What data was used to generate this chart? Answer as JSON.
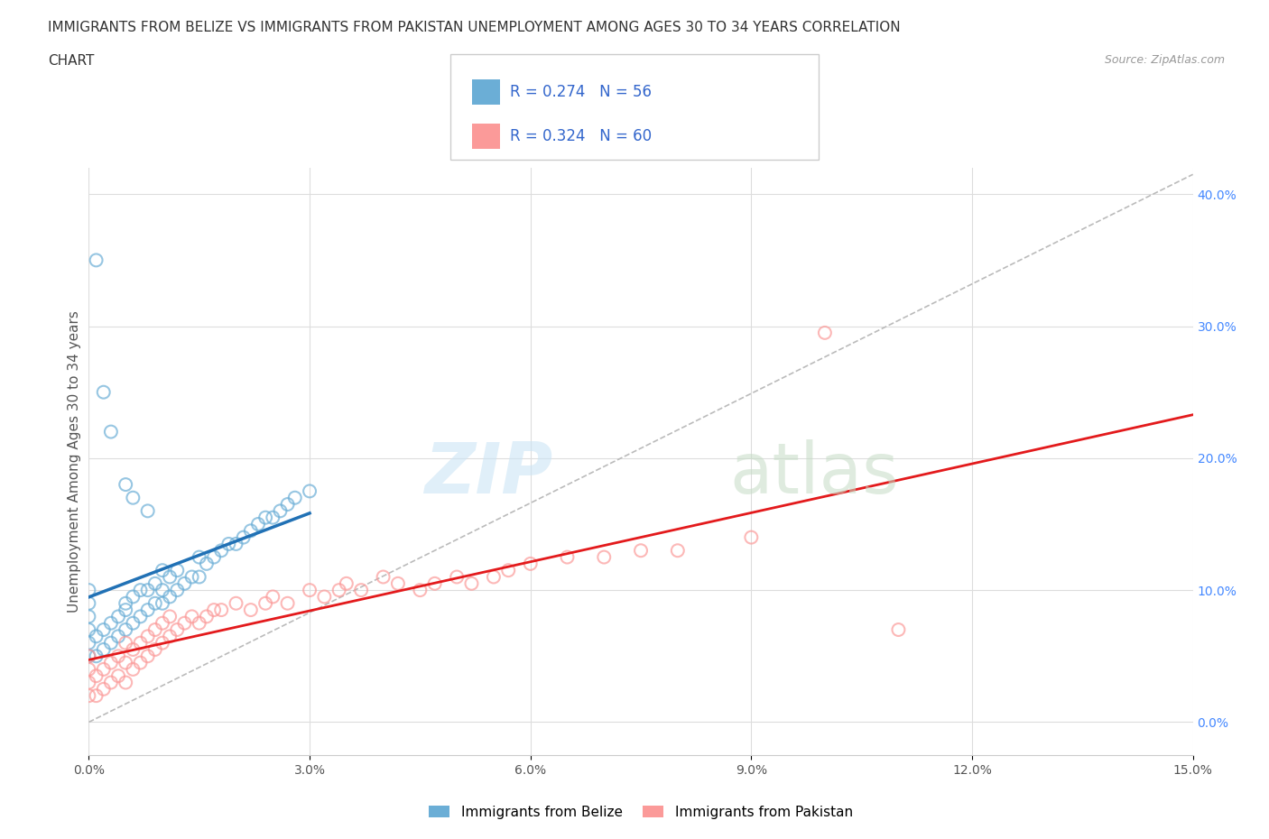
{
  "title_line1": "IMMIGRANTS FROM BELIZE VS IMMIGRANTS FROM PAKISTAN UNEMPLOYMENT AMONG AGES 30 TO 34 YEARS CORRELATION",
  "title_line2": "CHART",
  "source_text": "Source: ZipAtlas.com",
  "ylabel": "Unemployment Among Ages 30 to 34 years",
  "xlim": [
    0.0,
    0.15
  ],
  "ylim": [
    -0.025,
    0.42
  ],
  "xticks": [
    0.0,
    0.03,
    0.06,
    0.09,
    0.12,
    0.15
  ],
  "xticklabels": [
    "0.0%",
    "3.0%",
    "6.0%",
    "9.0%",
    "12.0%",
    "15.0%"
  ],
  "yticks_right": [
    0.0,
    0.1,
    0.2,
    0.3,
    0.4
  ],
  "yticklabels_right": [
    "0.0%",
    "10.0%",
    "20.0%",
    "30.0%",
    "40.0%"
  ],
  "belize_color": "#6baed6",
  "belize_line_color": "#2171b5",
  "pakistan_color": "#fb9a99",
  "pakistan_line_color": "#e31a1c",
  "belize_R": 0.274,
  "belize_N": 56,
  "pakistan_R": 0.324,
  "pakistan_N": 60,
  "legend_label_belize": "Immigrants from Belize",
  "legend_label_pakistan": "Immigrants from Pakistan",
  "background_color": "#ffffff",
  "belize_scatter_x": [
    0.0,
    0.0,
    0.0,
    0.0,
    0.0,
    0.0,
    0.001,
    0.001,
    0.002,
    0.002,
    0.003,
    0.003,
    0.004,
    0.004,
    0.005,
    0.005,
    0.005,
    0.006,
    0.006,
    0.007,
    0.007,
    0.008,
    0.008,
    0.009,
    0.009,
    0.01,
    0.01,
    0.01,
    0.011,
    0.011,
    0.012,
    0.012,
    0.013,
    0.014,
    0.015,
    0.015,
    0.016,
    0.017,
    0.018,
    0.019,
    0.02,
    0.021,
    0.022,
    0.023,
    0.024,
    0.025,
    0.026,
    0.027,
    0.028,
    0.03,
    0.001,
    0.002,
    0.003,
    0.005,
    0.006,
    0.008
  ],
  "belize_scatter_y": [
    0.05,
    0.06,
    0.07,
    0.08,
    0.09,
    0.1,
    0.05,
    0.065,
    0.055,
    0.07,
    0.06,
    0.075,
    0.065,
    0.08,
    0.07,
    0.085,
    0.09,
    0.075,
    0.095,
    0.08,
    0.1,
    0.085,
    0.1,
    0.09,
    0.105,
    0.09,
    0.1,
    0.115,
    0.095,
    0.11,
    0.1,
    0.115,
    0.105,
    0.11,
    0.11,
    0.125,
    0.12,
    0.125,
    0.13,
    0.135,
    0.135,
    0.14,
    0.145,
    0.15,
    0.155,
    0.155,
    0.16,
    0.165,
    0.17,
    0.175,
    0.35,
    0.25,
    0.22,
    0.18,
    0.17,
    0.16
  ],
  "pakistan_scatter_x": [
    0.0,
    0.0,
    0.0,
    0.0,
    0.001,
    0.001,
    0.002,
    0.002,
    0.003,
    0.003,
    0.004,
    0.004,
    0.005,
    0.005,
    0.005,
    0.006,
    0.006,
    0.007,
    0.007,
    0.008,
    0.008,
    0.009,
    0.009,
    0.01,
    0.01,
    0.011,
    0.011,
    0.012,
    0.013,
    0.014,
    0.015,
    0.016,
    0.017,
    0.018,
    0.02,
    0.022,
    0.024,
    0.025,
    0.027,
    0.03,
    0.032,
    0.034,
    0.035,
    0.037,
    0.04,
    0.042,
    0.045,
    0.047,
    0.05,
    0.052,
    0.055,
    0.057,
    0.06,
    0.065,
    0.07,
    0.075,
    0.08,
    0.09,
    0.1,
    0.11
  ],
  "pakistan_scatter_y": [
    0.02,
    0.03,
    0.04,
    0.05,
    0.02,
    0.035,
    0.025,
    0.04,
    0.03,
    0.045,
    0.035,
    0.05,
    0.03,
    0.045,
    0.06,
    0.04,
    0.055,
    0.045,
    0.06,
    0.05,
    0.065,
    0.055,
    0.07,
    0.06,
    0.075,
    0.065,
    0.08,
    0.07,
    0.075,
    0.08,
    0.075,
    0.08,
    0.085,
    0.085,
    0.09,
    0.085,
    0.09,
    0.095,
    0.09,
    0.1,
    0.095,
    0.1,
    0.105,
    0.1,
    0.11,
    0.105,
    0.1,
    0.105,
    0.11,
    0.105,
    0.11,
    0.115,
    0.12,
    0.125,
    0.125,
    0.13,
    0.13,
    0.14,
    0.295,
    0.07
  ],
  "title_fontsize": 11,
  "axis_label_fontsize": 11,
  "tick_fontsize": 10,
  "legend_fontsize": 12
}
